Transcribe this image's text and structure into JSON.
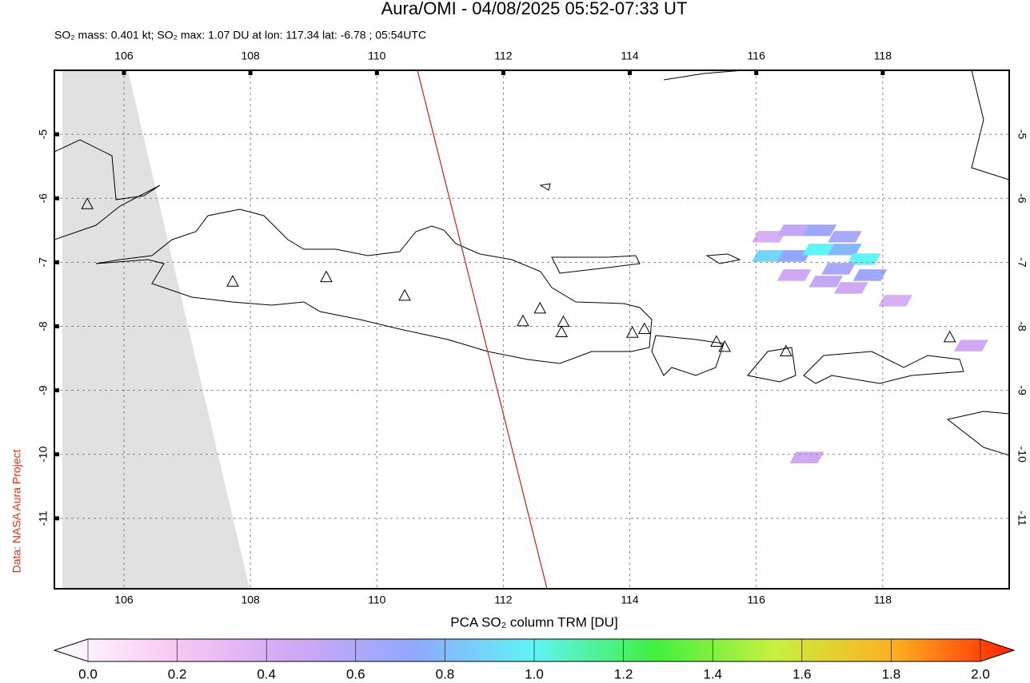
{
  "chart_data": {
    "type": "map",
    "title": "Aura/OMI - 04/08/2025 05:52-07:33 UT",
    "subtitle": "SO₂ mass: 0.401 kt; SO₂ max: 1.07 DU at lon: 117.34 lat: -6.78 ; 05:54UTC",
    "credit": "Data: NASA Aura Project",
    "xlim": [
      104.9,
      120.0
    ],
    "ylim": [
      -12.1,
      -4.0
    ],
    "xticks": [
      106,
      108,
      110,
      112,
      114,
      116,
      118
    ],
    "yticks": [
      -5,
      -6,
      -7,
      -8,
      -9,
      -10,
      -11
    ],
    "grid": true,
    "volcanoes": {
      "lon": [
        105.42,
        107.72,
        109.2,
        110.44,
        112.31,
        112.58,
        112.95,
        112.92,
        114.04,
        114.23,
        115.37,
        115.5,
        116.47,
        119.06
      ],
      "lat": [
        -6.1,
        -7.31,
        -7.24,
        -7.53,
        -7.93,
        -7.73,
        -7.94,
        -8.1,
        -8.11,
        -8.05,
        -8.25,
        -8.33,
        -8.4,
        -8.18
      ]
    },
    "so2_cells": {
      "lon": [
        116.2,
        116.6,
        117.0,
        117.4,
        116.2,
        116.6,
        117.0,
        117.4,
        117.7,
        117.8,
        117.3,
        116.6,
        117.1,
        117.5,
        118.2,
        119.4,
        116.8
      ],
      "lat": [
        -6.6,
        -6.5,
        -6.5,
        -6.6,
        -6.9,
        -6.9,
        -6.8,
        -6.8,
        -6.95,
        -7.2,
        -7.1,
        -7.2,
        -7.3,
        -7.4,
        -7.6,
        -8.3,
        -10.05
      ],
      "values": [
        0.45,
        0.55,
        0.7,
        0.65,
        0.9,
        0.75,
        1.0,
        0.8,
        1.0,
        0.7,
        0.65,
        0.5,
        0.55,
        0.5,
        0.45,
        0.5,
        0.5
      ]
    },
    "colorbar": {
      "label": "PCA SO₂ column TRM [DU]",
      "lim": [
        0,
        2
      ],
      "ticks": [
        {
          "value": 0,
          "label": "0.0"
        },
        {
          "value": 0.2,
          "label": "0.2"
        },
        {
          "value": 0.4,
          "label": "0.4"
        },
        {
          "value": 0.6,
          "label": "0.6"
        },
        {
          "value": 0.8,
          "label": "0.8"
        },
        {
          "value": 1,
          "label": "1.0"
        },
        {
          "value": 1.2,
          "label": "1.2"
        },
        {
          "value": 1.4,
          "label": "1.4"
        },
        {
          "value": 1.6,
          "label": "1.6"
        },
        {
          "value": 1.8,
          "label": "1.8"
        },
        {
          "value": 2,
          "label": "2.0"
        }
      ],
      "colors": [
        "#ffffff",
        "#f8c8f4",
        "#d0a8f4",
        "#90a8ff",
        "#60f4f4",
        "#40f040",
        "#c8f040",
        "#ffb020",
        "#ff2000"
      ]
    }
  }
}
